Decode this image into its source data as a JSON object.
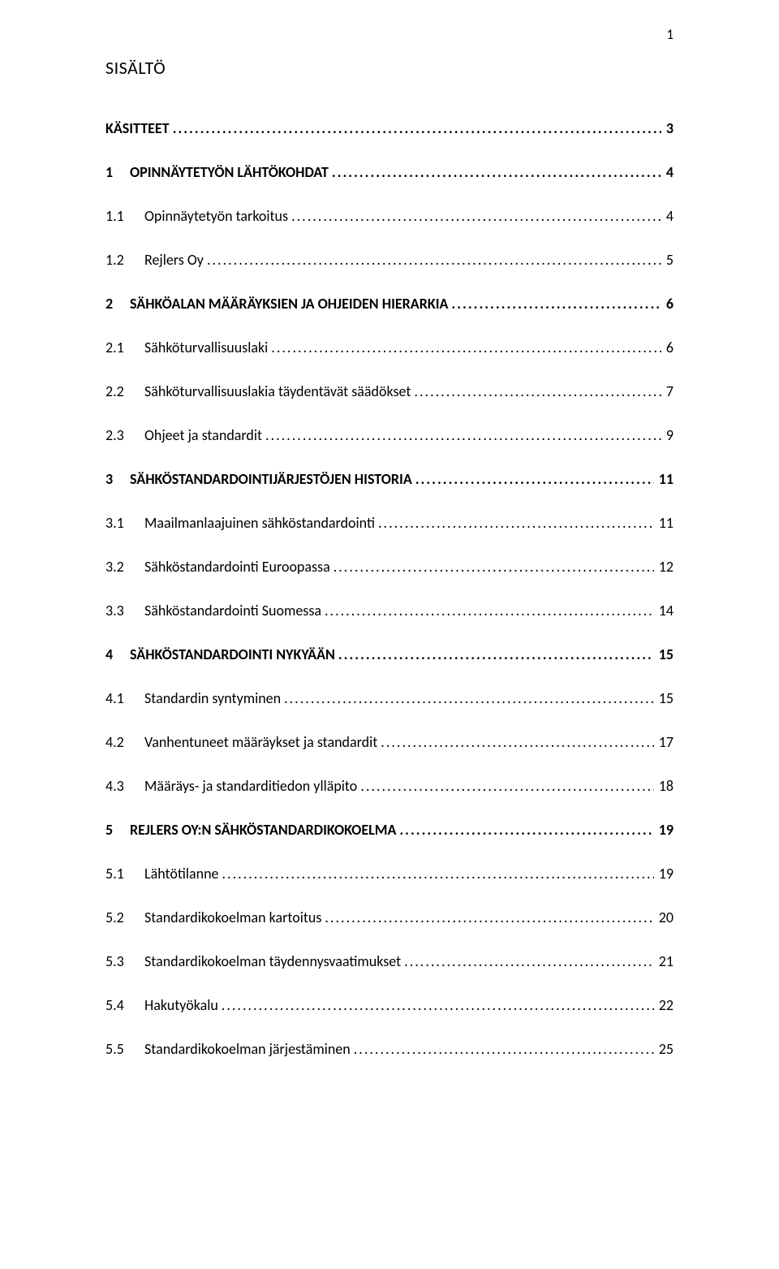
{
  "pageNumber": "1",
  "title": "SISÄLTÖ",
  "entries": [
    {
      "num": "",
      "label": "KÄSITTEET",
      "page": "3",
      "bold": true,
      "level": 1,
      "nonum": true
    },
    {
      "num": "1",
      "label": "OPINNÄYTETYÖN LÄHTÖKOHDAT",
      "page": "4",
      "bold": true,
      "level": 1
    },
    {
      "num": "1.1",
      "label": "Opinnäytetyön tarkoitus",
      "page": "4",
      "bold": false,
      "level": 2
    },
    {
      "num": "1.2",
      "label": "Rejlers Oy",
      "page": "5",
      "bold": false,
      "level": 2
    },
    {
      "num": "2",
      "label": "SÄHKÖALAN MÄÄRÄYKSIEN JA OHJEIDEN HIERARKIA",
      "page": "6",
      "bold": true,
      "level": 1
    },
    {
      "num": "2.1",
      "label": "Sähköturvallisuuslaki",
      "page": "6",
      "bold": false,
      "level": 2
    },
    {
      "num": "2.2",
      "label": "Sähköturvallisuuslakia täydentävät säädökset",
      "page": "7",
      "bold": false,
      "level": 2
    },
    {
      "num": "2.3",
      "label": "Ohjeet ja standardit",
      "page": "9",
      "bold": false,
      "level": 2
    },
    {
      "num": "3",
      "label": "SÄHKÖSTANDARDOINTIJÄRJESTÖJEN HISTORIA",
      "page": "11",
      "bold": true,
      "level": 1
    },
    {
      "num": "3.1",
      "label": "Maailmanlaajuinen sähköstandardointi",
      "page": "11",
      "bold": false,
      "level": 2
    },
    {
      "num": "3.2",
      "label": "Sähköstandardointi Euroopassa",
      "page": "12",
      "bold": false,
      "level": 2
    },
    {
      "num": "3.3",
      "label": "Sähköstandardointi Suomessa",
      "page": "14",
      "bold": false,
      "level": 2
    },
    {
      "num": "4",
      "label": "SÄHKÖSTANDARDOINTI NYKYÄÄN",
      "page": "15",
      "bold": true,
      "level": 1
    },
    {
      "num": "4.1",
      "label": "Standardin syntyminen",
      "page": "15",
      "bold": false,
      "level": 2
    },
    {
      "num": "4.2",
      "label": "Vanhentuneet määräykset ja standardit",
      "page": "17",
      "bold": false,
      "level": 2
    },
    {
      "num": "4.3",
      "label": "Määräys- ja standarditiedon ylläpito",
      "page": "18",
      "bold": false,
      "level": 2
    },
    {
      "num": "5",
      "label": "REJLERS OY:N SÄHKÖSTANDARDIKOKOELMA",
      "page": "19",
      "bold": true,
      "level": 1
    },
    {
      "num": "5.1",
      "label": "Lähtötilanne",
      "page": "19",
      "bold": false,
      "level": 2
    },
    {
      "num": "5.2",
      "label": "Standardikokoelman kartoitus",
      "page": "20",
      "bold": false,
      "level": 2
    },
    {
      "num": "5.3",
      "label": "Standardikokoelman täydennysvaatimukset",
      "page": "21",
      "bold": false,
      "level": 2
    },
    {
      "num": "5.4",
      "label": "Hakutyökalu",
      "page": "22",
      "bold": false,
      "level": 2
    },
    {
      "num": "5.5",
      "label": "Standardikokoelman järjestäminen",
      "page": "25",
      "bold": false,
      "level": 2
    }
  ]
}
